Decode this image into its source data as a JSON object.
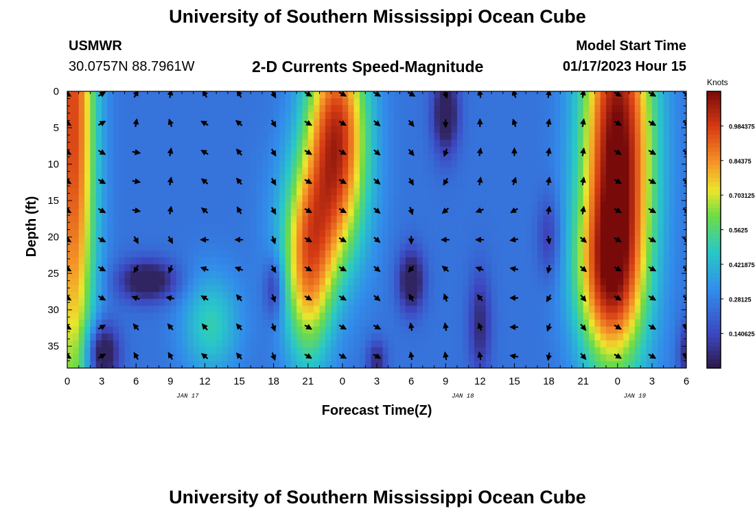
{
  "header": {
    "title": "University of Southern Mississippi Ocean Cube",
    "station_id": "USMWR",
    "coordinates": "30.0757N  88.7961W",
    "plot_title": "2-D Currents Speed-Magnitude",
    "model_start_label": "Model Start Time",
    "model_start_value": "01/17/2023 Hour 15"
  },
  "footer": {
    "title": "University of Southern Mississippi Ocean Cube"
  },
  "chart_data": {
    "type": "heatmap",
    "title": "2-D Currents Speed-Magnitude",
    "xlabel": "Forecast Time(Z)",
    "ylabel": "Depth (ft)",
    "x_ticks": [
      "0",
      "3",
      "6",
      "9",
      "12",
      "15",
      "18",
      "21",
      "0",
      "3",
      "6",
      "9",
      "12",
      "15",
      "18",
      "21",
      "0",
      "3",
      "6"
    ],
    "x_hours": [
      0,
      3,
      6,
      9,
      12,
      15,
      18,
      21,
      24,
      27,
      30,
      33,
      36,
      39,
      42,
      45,
      48,
      51,
      54
    ],
    "date_labels": [
      {
        "label": "JAN 17",
        "hour": 10.5
      },
      {
        "label": "JAN 18",
        "hour": 34.5
      },
      {
        "label": "JAN 19",
        "hour": 49.5
      }
    ],
    "xlim": [
      0,
      54
    ],
    "y_ticks": [
      "0",
      "5",
      "10",
      "15",
      "20",
      "25",
      "30",
      "35"
    ],
    "y_values": [
      0,
      5,
      10,
      15,
      20,
      25,
      30,
      35
    ],
    "ylim": [
      0,
      38
    ],
    "colorbar": {
      "unit": "Knots",
      "range": [
        0,
        1.125
      ],
      "tick_labels": [
        "0.140625",
        "0.28125",
        "0.421875",
        "0.5625",
        "0.703125",
        "0.84375",
        "0.984375"
      ],
      "tick_values": [
        0.140625,
        0.28125,
        0.421875,
        0.5625,
        0.703125,
        0.84375,
        0.984375
      ]
    },
    "speed_features": [
      {
        "hour": 0.5,
        "depth": 5,
        "speed": 0.72,
        "sigma_h": 1.4,
        "sigma_d": 30
      },
      {
        "hour": 3,
        "depth": 36,
        "speed": -0.35,
        "sigma_h": 1.0,
        "sigma_d": 3
      },
      {
        "hour": 7,
        "depth": 26,
        "speed": -0.3,
        "sigma_h": 1.8,
        "sigma_d": 2
      },
      {
        "hour": 12.5,
        "depth": 32,
        "speed": 0.25,
        "sigma_h": 1.8,
        "sigma_d": 5
      },
      {
        "hour": 18,
        "depth": 27,
        "speed": -0.2,
        "sigma_h": 0.6,
        "sigma_d": 3
      },
      {
        "hour": 21,
        "depth": 26,
        "speed": 0.45,
        "sigma_h": 1.5,
        "sigma_d": 9
      },
      {
        "hour": 23.5,
        "depth": 5,
        "speed": 0.72,
        "sigma_h": 1.9,
        "sigma_d": 10
      },
      {
        "hour": 22,
        "depth": 18,
        "speed": 0.3,
        "sigma_h": 2.5,
        "sigma_d": 8
      },
      {
        "hour": 27,
        "depth": 37,
        "speed": -0.2,
        "sigma_h": 0.6,
        "sigma_d": 2
      },
      {
        "hour": 30,
        "depth": 26,
        "speed": -0.3,
        "sigma_h": 0.8,
        "sigma_d": 3
      },
      {
        "hour": 33,
        "depth": 3,
        "speed": -0.3,
        "sigma_h": 0.8,
        "sigma_d": 4
      },
      {
        "hour": 36,
        "depth": 32,
        "speed": -0.2,
        "sigma_h": 0.7,
        "sigma_d": 5
      },
      {
        "hour": 42,
        "depth": 20,
        "speed": -0.15,
        "sigma_h": 0.7,
        "sigma_d": 4
      },
      {
        "hour": 48,
        "depth": 8,
        "speed": 0.9,
        "sigma_h": 2.2,
        "sigma_d": 18
      },
      {
        "hour": 47,
        "depth": 26,
        "speed": 0.4,
        "sigma_h": 2.0,
        "sigma_d": 8
      },
      {
        "hour": 54,
        "depth": 36,
        "speed": -0.2,
        "sigma_h": 0.5,
        "sigma_d": 3
      }
    ],
    "base_speed": 0.25,
    "arrow_hours": [
      0,
      3,
      6,
      9,
      12,
      15,
      18,
      21,
      24,
      27,
      30,
      33,
      36,
      39,
      42,
      45,
      48,
      51,
      54
    ],
    "arrow_depths": [
      0,
      4,
      8,
      12,
      16,
      20,
      24,
      28,
      32,
      36
    ],
    "arrow_direction_deg_rows": [
      [
        120,
        60,
        30,
        10,
        330,
        330,
        150,
        120,
        120,
        120,
        120,
        160,
        350,
        340,
        10,
        10,
        120,
        120,
        120
      ],
      [
        120,
        60,
        10,
        340,
        300,
        310,
        150,
        120,
        120,
        130,
        140,
        180,
        0,
        340,
        10,
        10,
        120,
        120,
        120
      ],
      [
        120,
        120,
        100,
        10,
        300,
        320,
        150,
        120,
        120,
        130,
        140,
        200,
        10,
        0,
        10,
        10,
        120,
        120,
        120
      ],
      [
        120,
        120,
        100,
        10,
        310,
        320,
        150,
        120,
        120,
        130,
        150,
        210,
        10,
        20,
        10,
        10,
        120,
        120,
        120
      ],
      [
        120,
        120,
        100,
        10,
        310,
        330,
        150,
        120,
        120,
        130,
        160,
        230,
        250,
        240,
        10,
        10,
        120,
        120,
        120
      ],
      [
        120,
        120,
        150,
        150,
        270,
        270,
        160,
        120,
        120,
        130,
        180,
        270,
        270,
        260,
        170,
        130,
        120,
        120,
        120
      ],
      [
        120,
        120,
        210,
        200,
        290,
        290,
        150,
        120,
        120,
        130,
        220,
        310,
        290,
        280,
        190,
        130,
        120,
        120,
        120
      ],
      [
        120,
        120,
        290,
        280,
        300,
        320,
        160,
        120,
        120,
        130,
        330,
        340,
        320,
        270,
        210,
        140,
        120,
        120,
        120
      ],
      [
        120,
        60,
        320,
        320,
        320,
        320,
        160,
        120,
        120,
        120,
        350,
        350,
        340,
        270,
        200,
        140,
        120,
        120,
        300
      ],
      [
        120,
        60,
        330,
        330,
        310,
        320,
        160,
        120,
        120,
        120,
        350,
        350,
        350,
        280,
        190,
        140,
        120,
        120,
        300
      ]
    ]
  }
}
